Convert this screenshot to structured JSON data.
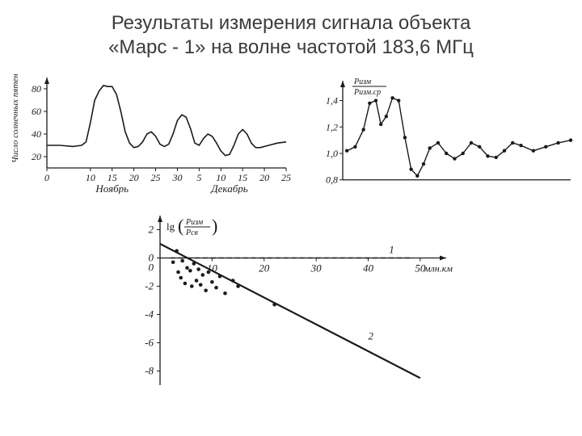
{
  "title_line1": "Результаты измерения сигнала объекта",
  "title_line2": "«Марс - 1» на волне частотой 183,6 МГц",
  "title_fontsize": 24,
  "title_color": "#3b3b3b",
  "chart_sunspots": {
    "type": "line",
    "ylabel": "Число солнечных пятен",
    "ylabel_fontsize": 11,
    "xlabel_left": "Ноябрь",
    "xlabel_right": "Декабрь",
    "xlabel_fontsize": 13,
    "xticks": [
      0,
      10,
      15,
      20,
      25,
      30,
      5,
      10,
      15,
      20,
      25
    ],
    "xticks_pos": [
      0,
      10,
      15,
      20,
      25,
      30,
      35,
      40,
      45,
      50,
      55
    ],
    "yticks": [
      20,
      40,
      60,
      80
    ],
    "xlim": [
      0,
      55
    ],
    "ylim": [
      10,
      90
    ],
    "line_color": "#1a1a1a",
    "line_width": 1.6,
    "axis_color": "#1a1a1a",
    "tick_fontsize": 12,
    "data": [
      [
        0,
        30
      ],
      [
        3,
        30
      ],
      [
        6,
        29
      ],
      [
        8,
        30
      ],
      [
        9,
        33
      ],
      [
        10,
        50
      ],
      [
        11,
        70
      ],
      [
        12,
        78
      ],
      [
        13,
        83
      ],
      [
        14,
        82
      ],
      [
        15,
        82
      ],
      [
        16,
        75
      ],
      [
        17,
        60
      ],
      [
        18,
        42
      ],
      [
        19,
        32
      ],
      [
        20,
        28
      ],
      [
        21,
        29
      ],
      [
        22,
        33
      ],
      [
        23,
        40
      ],
      [
        24,
        42
      ],
      [
        25,
        38
      ],
      [
        26,
        31
      ],
      [
        27,
        29
      ],
      [
        28,
        31
      ],
      [
        29,
        40
      ],
      [
        30,
        52
      ],
      [
        31,
        57
      ],
      [
        32,
        55
      ],
      [
        33,
        45
      ],
      [
        34,
        32
      ],
      [
        35,
        30
      ],
      [
        36,
        36
      ],
      [
        37,
        40
      ],
      [
        38,
        38
      ],
      [
        39,
        32
      ],
      [
        40,
        25
      ],
      [
        41,
        21
      ],
      [
        42,
        22
      ],
      [
        43,
        30
      ],
      [
        44,
        40
      ],
      [
        45,
        44
      ],
      [
        46,
        40
      ],
      [
        47,
        32
      ],
      [
        48,
        28
      ],
      [
        49,
        28
      ],
      [
        51,
        30
      ],
      [
        53,
        32
      ],
      [
        55,
        33
      ]
    ]
  },
  "chart_ratio": {
    "type": "line",
    "ylabel_num": "Pизм",
    "ylabel_den": "Pизм.ср",
    "ylabel_fontsize": 10,
    "yticks": [
      0.8,
      1.0,
      1.2,
      1.4
    ],
    "ylim": [
      0.78,
      1.55
    ],
    "xlim": [
      0,
      55
    ],
    "line_color": "#1a1a1a",
    "line_width": 1.4,
    "marker_color": "#1a1a1a",
    "marker_size": 2.2,
    "axis_color": "#1a1a1a",
    "tick_fontsize": 12,
    "data": [
      [
        1,
        1.02
      ],
      [
        3,
        1.05
      ],
      [
        5,
        1.18
      ],
      [
        6.5,
        1.38
      ],
      [
        8,
        1.4
      ],
      [
        9.2,
        1.22
      ],
      [
        10.5,
        1.28
      ],
      [
        12,
        1.42
      ],
      [
        13.5,
        1.4
      ],
      [
        15,
        1.12
      ],
      [
        16.5,
        0.88
      ],
      [
        18,
        0.83
      ],
      [
        19.5,
        0.92
      ],
      [
        21,
        1.04
      ],
      [
        23,
        1.08
      ],
      [
        25,
        1.0
      ],
      [
        27,
        0.96
      ],
      [
        29,
        1.0
      ],
      [
        31,
        1.08
      ],
      [
        33,
        1.05
      ],
      [
        35,
        0.98
      ],
      [
        37,
        0.97
      ],
      [
        39,
        1.02
      ],
      [
        41,
        1.08
      ],
      [
        43,
        1.06
      ],
      [
        46,
        1.02
      ],
      [
        49,
        1.05
      ],
      [
        52,
        1.08
      ],
      [
        55,
        1.1
      ]
    ]
  },
  "chart_scatter": {
    "type": "scatter",
    "ylabel_lg": "lg",
    "ylabel_num": "Pизм",
    "ylabel_den": "Pсв",
    "ylabel_fontsize": 12,
    "xlabel": "млн.км",
    "xlabel_fontsize": 12,
    "xticks": [
      0,
      10,
      20,
      30,
      40,
      50
    ],
    "yticks": [
      -8,
      -6,
      -4,
      -2,
      0,
      2
    ],
    "xlim": [
      0,
      55
    ],
    "ylim": [
      -9,
      3
    ],
    "axis_color": "#1a1a1a",
    "tick_fontsize": 13,
    "line1_dash": "6 4",
    "line1_color": "#1a1a1a",
    "line1_width": 1.4,
    "line1_label": "1",
    "line2_color": "#1a1a1a",
    "line2_width": 2.2,
    "line2_label": "2",
    "line2_p1": [
      0,
      1.0
    ],
    "line2_p2": [
      50,
      -8.5
    ],
    "marker_color": "#1a1a1a",
    "marker_size": 2.3,
    "points": [
      [
        2.5,
        -0.3
      ],
      [
        3.2,
        0.5
      ],
      [
        3.5,
        -1.0
      ],
      [
        4.0,
        -1.4
      ],
      [
        4.3,
        -0.2
      ],
      [
        4.8,
        -1.8
      ],
      [
        5.2,
        -0.7
      ],
      [
        5.8,
        -0.9
      ],
      [
        6.1,
        -2.0
      ],
      [
        6.5,
        -0.4
      ],
      [
        7.0,
        -1.6
      ],
      [
        7.4,
        -0.8
      ],
      [
        7.8,
        -1.9
      ],
      [
        8.2,
        -1.2
      ],
      [
        8.8,
        -2.3
      ],
      [
        9.3,
        -1.0
      ],
      [
        10.0,
        -1.7
      ],
      [
        10.8,
        -2.1
      ],
      [
        11.5,
        -1.3
      ],
      [
        12.5,
        -2.5
      ],
      [
        14.0,
        -1.6
      ],
      [
        15.0,
        -2.0
      ],
      [
        22.0,
        -3.3
      ]
    ]
  }
}
